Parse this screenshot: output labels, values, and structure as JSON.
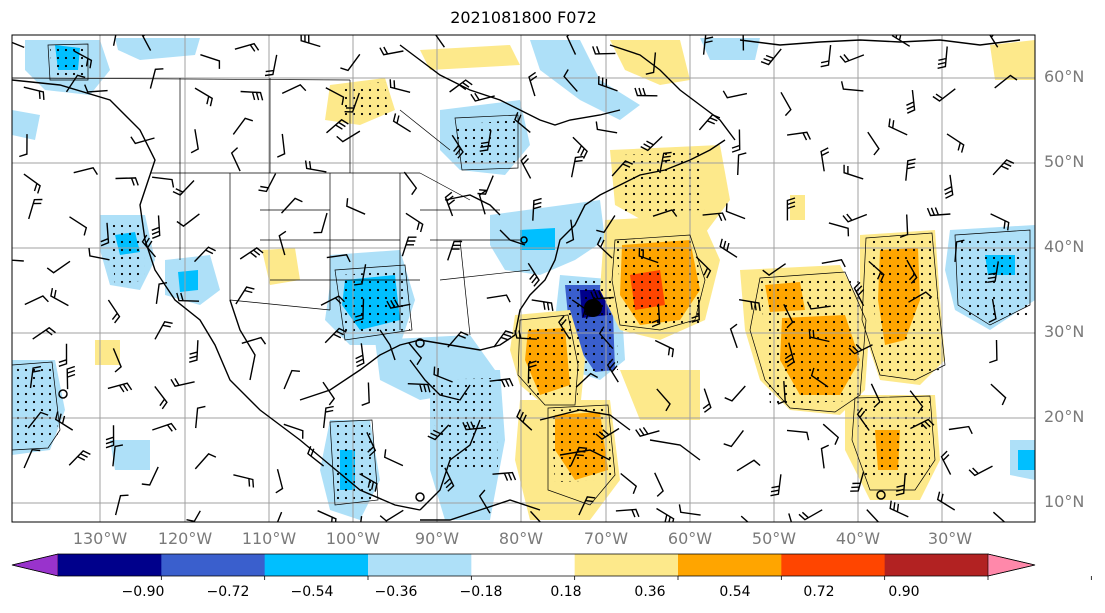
{
  "title": "2021081800 F072",
  "latitude_labels": [
    "60°N",
    "50°N",
    "40°N",
    "30°N",
    "20°N",
    "10°N"
  ],
  "longitude_labels": [
    "130°W",
    "120°W",
    "110°W",
    "100°W",
    "90°W",
    "80°W",
    "70°W",
    "60°W",
    "50°W",
    "40°W",
    "30°W"
  ],
  "colorbar": {
    "tick_labels": [
      "−0.90",
      "−0.72",
      "−0.54",
      "−0.36",
      "−0.18",
      "0.18",
      "0.36",
      "0.54",
      "0.72",
      "0.90"
    ],
    "colors": [
      "#9933cc",
      "#00008b",
      "#3a5fcd",
      "#00bfff",
      "#aee0f8",
      "#ffffff",
      "#fde98b",
      "#ffa500",
      "#ff4500",
      "#b22222",
      "#ff88aa"
    ]
  },
  "colors": {
    "coast": "#000000",
    "grid": "#a0a0a0",
    "wind_barb": "#000000"
  }
}
